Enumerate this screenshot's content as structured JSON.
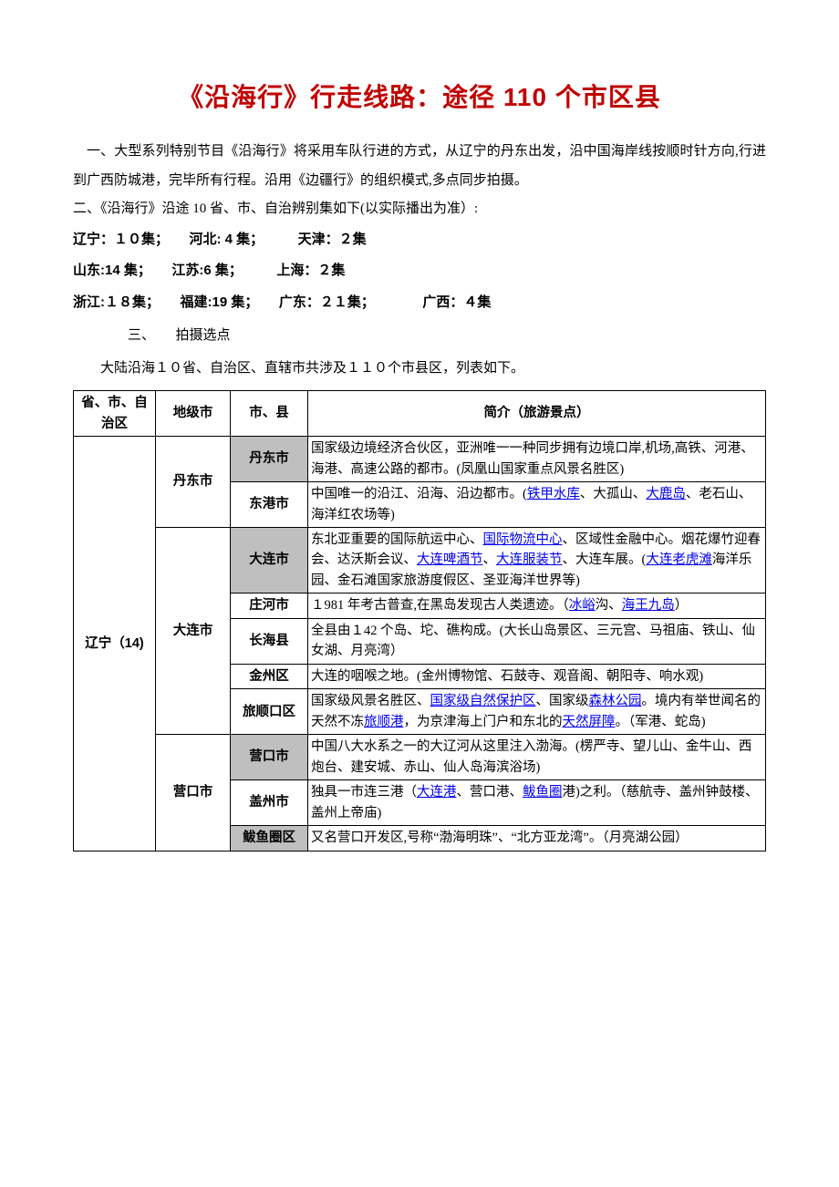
{
  "title": "《沿海行》行走线路：途径 110 个市区县",
  "intro_p1": "一、大型系列特别节目《沿海行》将采用车队行进的方式，从辽宁的丹东出发，沿中国海岸线按顺时针方向,行进到广西防城港，完毕所有行程。沿用《边疆行》的组织模式,多点同步拍摄。",
  "intro_p2": "二、《沿海行》沿途 10 省、市、自治辨别集如下(以实际播出为准）:",
  "episodes": {
    "line1": "辽宁：１０集；　　河北: 4 集；　　　天津：２集",
    "line2": "山东:14 集；　　江苏:6 集；　　　上海：２集",
    "line3": "浙江:１８集；　　福建:19 集；　　广东：２１集；　　　　广西：４集"
  },
  "sec3_label": "三、　　拍摄选点",
  "sec3_body": "大陆沿海１０省、自治区、直辖市共涉及１１０个市县区，列表如下。",
  "table": {
    "headers": [
      "省、市、自治区",
      "地级市",
      "市、县",
      "简介（旅游景点）"
    ],
    "province": "辽宁（14)",
    "rows": [
      {
        "pref": "丹东市",
        "pref_rs": 2,
        "city": "丹东市",
        "shaded": true,
        "desc": [
          {
            "t": "国家级边境经济合伙区，亚洲唯一一种同步拥有边境口岸,机场,高铁、河港、海港、高速公路的都市。(凤凰山国家重点风景名胜区)"
          }
        ]
      },
      {
        "city": "东港市",
        "shaded": false,
        "desc": [
          {
            "t": "中国唯一的沿江、沿海、沿边都市。("
          },
          {
            "t": "铁甲水库",
            "l": 1
          },
          {
            "t": "、大孤山、"
          },
          {
            "t": "大鹿岛",
            "l": 1
          },
          {
            "t": "、老石山、海洋红农场等)"
          }
        ]
      },
      {
        "pref": "大连市",
        "pref_rs": 5,
        "city": "大连市",
        "shaded": true,
        "desc": [
          {
            "t": "东北亚重要的国际航运中心、"
          },
          {
            "t": "国际物流中心",
            "l": 1
          },
          {
            "t": "、区域性金融中心。烟花爆竹迎春会、达沃斯会议、"
          },
          {
            "t": "大连啤酒节",
            "l": 1
          },
          {
            "t": "、"
          },
          {
            "t": "大连服装节",
            "l": 1
          },
          {
            "t": "、大连车展。("
          },
          {
            "t": "大连老虎滩",
            "l": 1
          },
          {
            "t": "海洋乐园、金石滩国家旅游度假区、圣亚海洋世界等)"
          }
        ]
      },
      {
        "city": "庄河市",
        "shaded": false,
        "desc": [
          {
            "t": "１981 年考古普查,在黑岛发现古人类遗迹。（"
          },
          {
            "t": "冰峪",
            "l": 1
          },
          {
            "t": "沟、"
          },
          {
            "t": "海王九岛",
            "l": 1
          },
          {
            "t": "）"
          }
        ]
      },
      {
        "city": "长海县",
        "shaded": false,
        "desc": [
          {
            "t": "全县由１42 个岛、坨、礁构成。(大长山岛景区、三元宫、马祖庙、铁山、仙女湖、月亮湾）"
          }
        ]
      },
      {
        "city": "金州区",
        "shaded": false,
        "desc": [
          {
            "t": "大连的咽喉之地。(金州博物馆、石鼓寺、观音阁、朝阳寺、响水观)"
          }
        ]
      },
      {
        "city": "旅顺口区",
        "shaded": false,
        "desc": [
          {
            "t": "国家级风景名胜区、"
          },
          {
            "t": "国家级自然保护区",
            "l": 1
          },
          {
            "t": "、国家级"
          },
          {
            "t": "森林公园",
            "l": 1
          },
          {
            "t": "。境内有举世闻名的天然不冻"
          },
          {
            "t": "旅顺港",
            "l": 1
          },
          {
            "t": "，为京津海上门户和东北的"
          },
          {
            "t": "天然屏障",
            "l": 1
          },
          {
            "t": "。（军港、蛇岛)"
          }
        ]
      },
      {
        "pref": "营口市",
        "pref_rs": 3,
        "city": "营口市",
        "shaded": true,
        "desc": [
          {
            "t": "中国八大水系之一的大辽河从这里注入渤海。(楞严寺、望儿山、金牛山、西炮台、建安城、赤山、仙人岛海滨浴场)"
          }
        ]
      },
      {
        "city": "盖州市",
        "shaded": false,
        "desc": [
          {
            "t": "独具一市连三港（"
          },
          {
            "t": "大连港",
            "l": 1
          },
          {
            "t": "、营口港、"
          },
          {
            "t": "鲅鱼圈",
            "l": 1
          },
          {
            "t": "港)之利。（慈航寺、盖州钟鼓楼、盖州上帝庙)"
          }
        ]
      },
      {
        "city": "鲅鱼圈区",
        "shaded": true,
        "desc": [
          {
            "t": "又名营口开发区,号称“渤海明珠”、“北方亚龙湾”。（月亮湖公园）"
          }
        ]
      }
    ]
  }
}
